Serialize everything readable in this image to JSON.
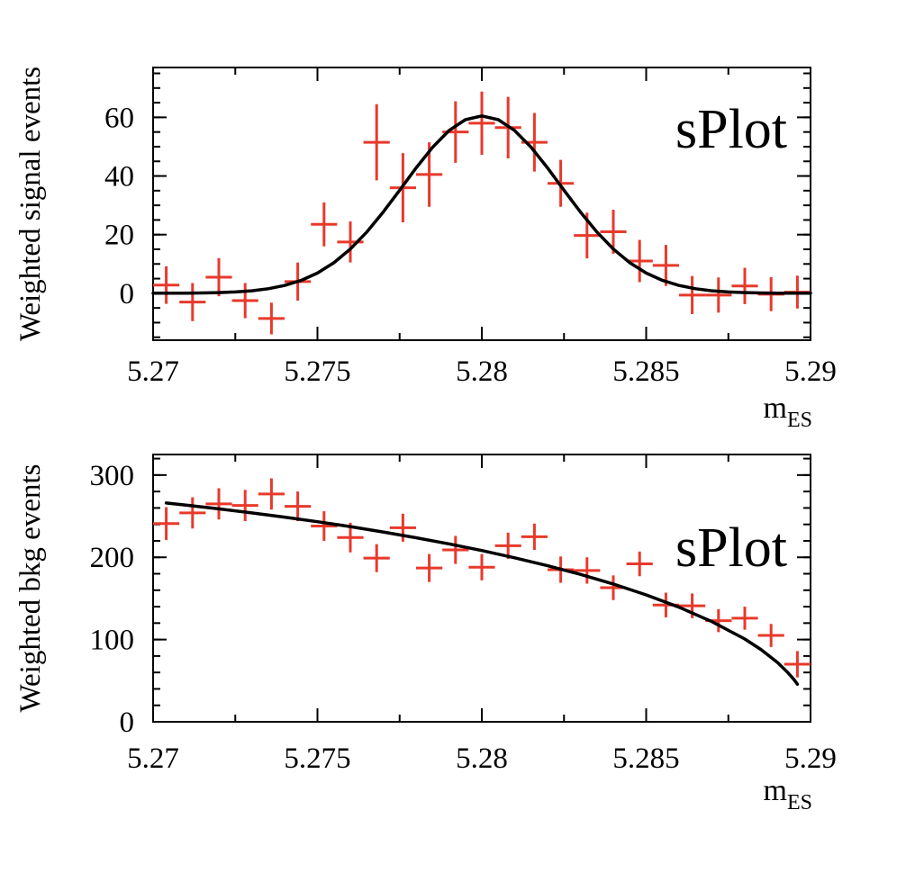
{
  "figure": {
    "background": "#ffffff",
    "frame_color": "#000000"
  },
  "chart_data": [
    {
      "type": "scatter",
      "annotation": "sPlot",
      "ylabel": "Weighted signal events",
      "xlabel": "m",
      "xlabel_subscript": "ES",
      "xlim": [
        5.27,
        5.29
      ],
      "ylim": [
        -16,
        77
      ],
      "x_major_ticks": [
        5.27,
        5.275,
        5.28,
        5.285,
        5.29
      ],
      "x_tick_labels": [
        "5.27",
        "5.275",
        "5.28",
        "5.285",
        "5.29"
      ],
      "x_minor_step": 0.0025,
      "y_major_ticks": [
        0,
        20,
        40,
        60
      ],
      "y_tick_labels": [
        "0",
        "20",
        "40",
        "60"
      ],
      "y_minor_step": 5,
      "grid": false,
      "colors": {
        "marker": "#e8392b",
        "curve": "#000000"
      },
      "bin_half_width": 0.0004,
      "points": {
        "x": [
          5.2704,
          5.2712,
          5.272,
          5.2728,
          5.2736,
          5.2744,
          5.2752,
          5.276,
          5.2768,
          5.2776,
          5.2784,
          5.2792,
          5.28,
          5.2808,
          5.2816,
          5.2824,
          5.2832,
          5.284,
          5.2848,
          5.2856,
          5.2864,
          5.2872,
          5.288,
          5.2888,
          5.2896
        ],
        "y": [
          2.8,
          -3.0,
          5.5,
          -2.5,
          -8.6,
          4.0,
          23.5,
          17.5,
          51.5,
          36.0,
          40.5,
          55.0,
          58.0,
          56.5,
          51.5,
          37.5,
          19.7,
          21.0,
          11.0,
          9.5,
          -0.6,
          -0.6,
          2.5,
          -0.3,
          0.4
        ],
        "yerr": [
          6.4,
          6.5,
          6.5,
          6.0,
          5.4,
          6.5,
          7.5,
          7.0,
          13.0,
          11.8,
          11.0,
          10.5,
          10.8,
          10.5,
          10.0,
          8.0,
          7.8,
          7.5,
          7.2,
          7.0,
          6.5,
          6.0,
          6.2,
          5.8,
          5.6
        ]
      },
      "curve": {
        "description": "Gaussian signal fit, mean 5.28, peak 60.5",
        "x": [
          5.27,
          5.2705,
          5.271,
          5.2715,
          5.272,
          5.2725,
          5.273,
          5.2735,
          5.274,
          5.2745,
          5.275,
          5.2755,
          5.276,
          5.2765,
          5.277,
          5.2775,
          5.278,
          5.2785,
          5.279,
          5.2795,
          5.28,
          5.2805,
          5.281,
          5.2815,
          5.282,
          5.2825,
          5.283,
          5.2835,
          5.284,
          5.2845,
          5.285,
          5.2855,
          5.286,
          5.2865,
          5.287,
          5.2875,
          5.288,
          5.2885,
          5.289,
          5.2895,
          5.29
        ],
        "y": [
          0.01,
          0.02,
          0.05,
          0.11,
          0.23,
          0.46,
          0.86,
          1.55,
          2.66,
          4.38,
          6.91,
          10.43,
          15.09,
          20.89,
          27.7,
          35.17,
          42.75,
          49.77,
          55.47,
          59.2,
          60.5,
          59.2,
          55.47,
          49.77,
          42.75,
          35.17,
          27.7,
          20.89,
          15.09,
          10.43,
          6.91,
          4.38,
          2.66,
          1.55,
          0.86,
          0.46,
          0.23,
          0.11,
          0.05,
          0.02,
          0.01
        ]
      }
    },
    {
      "type": "scatter",
      "annotation": "sPlot",
      "ylabel": "Weighted bkg events",
      "xlabel": "m",
      "xlabel_subscript": "ES",
      "xlim": [
        5.27,
        5.29
      ],
      "ylim": [
        0,
        325
      ],
      "x_major_ticks": [
        5.27,
        5.275,
        5.28,
        5.285,
        5.29
      ],
      "x_tick_labels": [
        "5.27",
        "5.275",
        "5.28",
        "5.285",
        "5.29"
      ],
      "x_minor_step": 0.0025,
      "y_major_ticks": [
        0,
        100,
        200,
        300
      ],
      "y_tick_labels": [
        "0",
        "100",
        "200",
        "300"
      ],
      "y_minor_step": 20,
      "grid": false,
      "colors": {
        "marker": "#e8392b",
        "curve": "#000000"
      },
      "bin_half_width": 0.0004,
      "points": {
        "x": [
          5.2704,
          5.2712,
          5.272,
          5.2728,
          5.2736,
          5.2744,
          5.2752,
          5.276,
          5.2768,
          5.2776,
          5.2784,
          5.2792,
          5.28,
          5.2808,
          5.2816,
          5.2824,
          5.2832,
          5.284,
          5.2848,
          5.2856,
          5.2864,
          5.2872,
          5.288,
          5.2888,
          5.2896
        ],
        "y": [
          241,
          254,
          265,
          263,
          277,
          262,
          238,
          224,
          199,
          236,
          187,
          209,
          188,
          214,
          225,
          185,
          184,
          163,
          192,
          142,
          141,
          123,
          126,
          105,
          70
        ],
        "yerr": [
          20,
          19,
          19,
          19,
          19,
          18,
          18,
          18,
          17,
          17,
          17,
          17,
          16,
          16,
          16,
          16,
          16,
          15,
          15,
          15,
          15,
          14,
          14,
          14,
          16
        ]
      },
      "curve": {
        "description": "Argus background fit, endpoint 5.29",
        "x": [
          5.2704,
          5.271,
          5.272,
          5.273,
          5.274,
          5.275,
          5.276,
          5.277,
          5.278,
          5.279,
          5.28,
          5.281,
          5.282,
          5.283,
          5.284,
          5.285,
          5.286,
          5.287,
          5.288,
          5.2885,
          5.289,
          5.2893,
          5.2895,
          5.2896
        ],
        "y": [
          266.0,
          263.4,
          258.9,
          254.0,
          248.8,
          243.3,
          237.3,
          230.8,
          223.8,
          216.3,
          208.2,
          199.4,
          189.8,
          179.2,
          167.5,
          154.3,
          139.3,
          121.8,
          100.7,
          87.6,
          71.9,
          60.3,
          51.1,
          45.7
        ]
      }
    }
  ]
}
